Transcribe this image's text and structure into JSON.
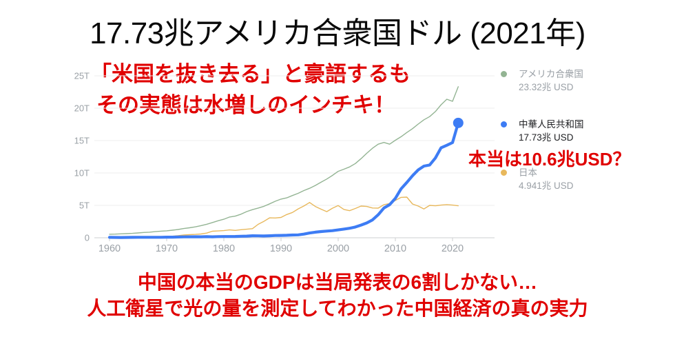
{
  "title": "17.73兆アメリカ合衆国ドル (2021年)",
  "annotations": {
    "top_line1": "「米国を抜き去る」と豪語するも",
    "top_line2": "その実態は水増しのインチキ！",
    "legend_note": "本当は10.6兆USD？",
    "bottom_line1": "中国の本当のGDPは当局発表の6割しかない…",
    "bottom_line2": "人工衛星で光の量を測定してわかった中国経済の真の実力"
  },
  "colors": {
    "annotation_red": "#e00000",
    "title_black": "#0a0a0a",
    "legend_gray": "#9aa0a6",
    "legend_dark": "#202124",
    "gridline": "#ececec",
    "axis_line": "#cdcfd1"
  },
  "chart_data": {
    "type": "line",
    "x_start": 1960,
    "x_end": 2021,
    "x_step": 1,
    "ylim": [
      0,
      25
    ],
    "unit": "trillion USD",
    "grid": true,
    "legend_position": "right",
    "x_ticks": [
      1960,
      1970,
      1980,
      1990,
      2000,
      2010,
      2020
    ],
    "y_ticks": [
      {
        "v": 0,
        "label": "0"
      },
      {
        "v": 5,
        "label": "5T"
      },
      {
        "v": 10,
        "label": "10T"
      },
      {
        "v": 15,
        "label": "15T"
      },
      {
        "v": 20,
        "label": "20T"
      },
      {
        "v": 25,
        "label": "25T"
      }
    ],
    "series": [
      {
        "name": "アメリカ合衆国",
        "legend_value": "23.32兆 USD",
        "color": "#93b493",
        "emphasis": false,
        "end_dot": false,
        "z": 1,
        "values": [
          0.543,
          0.563,
          0.605,
          0.639,
          0.686,
          0.744,
          0.815,
          0.862,
          0.943,
          1.02,
          1.073,
          1.165,
          1.279,
          1.425,
          1.545,
          1.685,
          1.873,
          2.082,
          2.352,
          2.627,
          2.857,
          3.207,
          3.344,
          3.634,
          4.038,
          4.339,
          4.58,
          4.855,
          5.236,
          5.642,
          5.963,
          6.158,
          6.52,
          6.859,
          7.287,
          7.64,
          8.073,
          8.578,
          9.063,
          9.631,
          10.25,
          10.58,
          10.94,
          11.46,
          12.21,
          13.04,
          13.82,
          14.45,
          14.71,
          14.45,
          15.05,
          15.6,
          16.25,
          16.84,
          17.55,
          18.21,
          18.7,
          19.48,
          20.53,
          21.38,
          21.06,
          23.32
        ]
      },
      {
        "name": "中華人民共和国",
        "legend_value": "17.73兆 USD",
        "color": "#3d7cf4",
        "emphasis": true,
        "end_dot": true,
        "z": 3,
        "values": [
          0.06,
          0.05,
          0.047,
          0.051,
          0.06,
          0.07,
          0.077,
          0.073,
          0.071,
          0.079,
          0.093,
          0.099,
          0.113,
          0.137,
          0.144,
          0.163,
          0.154,
          0.175,
          0.15,
          0.178,
          0.191,
          0.196,
          0.205,
          0.231,
          0.26,
          0.31,
          0.301,
          0.273,
          0.312,
          0.348,
          0.361,
          0.383,
          0.427,
          0.445,
          0.564,
          0.734,
          0.864,
          0.962,
          1.029,
          1.094,
          1.211,
          1.339,
          1.471,
          1.66,
          1.955,
          2.286,
          2.752,
          3.55,
          4.594,
          5.102,
          6.087,
          7.552,
          8.532,
          9.57,
          10.48,
          11.06,
          11.23,
          12.31,
          13.89,
          14.28,
          14.69,
          17.73
        ]
      },
      {
        "name": "日本",
        "legend_value": "4.941兆 USD",
        "color": "#e8b85c",
        "emphasis": false,
        "end_dot": false,
        "z": 2,
        "values": [
          0.044,
          0.054,
          0.061,
          0.069,
          0.082,
          0.091,
          0.106,
          0.124,
          0.147,
          0.172,
          0.213,
          0.24,
          0.318,
          0.432,
          0.48,
          0.521,
          0.586,
          0.721,
          1.013,
          1.055,
          1.105,
          1.218,
          1.134,
          1.243,
          1.318,
          1.399,
          2.079,
          2.533,
          3.072,
          3.054,
          3.133,
          3.584,
          3.909,
          4.454,
          4.907,
          5.449,
          4.834,
          4.415,
          4.033,
          4.562,
          4.968,
          4.374,
          4.183,
          4.519,
          4.893,
          4.831,
          4.601,
          4.579,
          5.106,
          5.289,
          5.759,
          6.233,
          6.272,
          5.212,
          4.897,
          4.444,
          5.004,
          4.931,
          5.041,
          5.118,
          5.04,
          4.941
        ]
      }
    ]
  }
}
